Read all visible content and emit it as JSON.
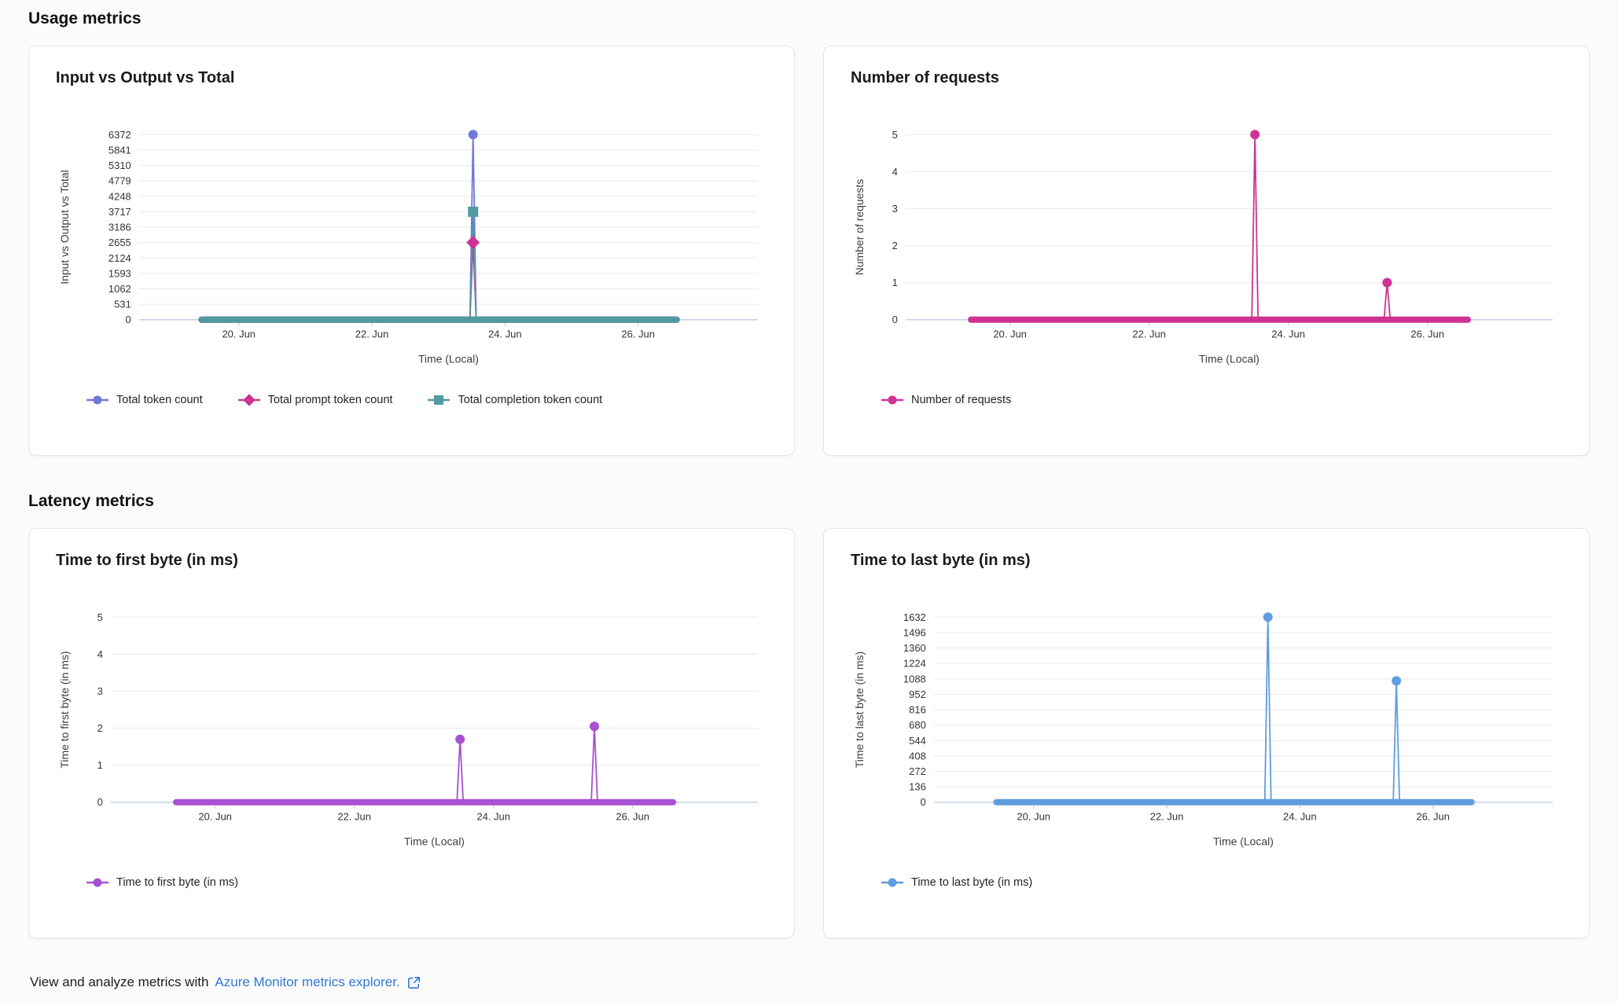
{
  "page": {
    "section_usage_heading": "Usage metrics",
    "section_latency_heading": "Latency metrics",
    "footer": {
      "prefix_text": "View and analyze metrics with",
      "link_text": "Azure Monitor metrics explorer.",
      "link_icon": "external-link-icon",
      "link_color": "#3179d8"
    }
  },
  "colors": {
    "total_token_count": "#7177db",
    "total_prompt_token_count": "#cf3292",
    "total_completion_token_count": "#4f9ba0",
    "number_of_requests": "#cf3292",
    "time_to_first_byte": "#a750d2",
    "time_to_last_byte": "#5f9dde",
    "axis_line": "#c9d4ea",
    "gridline": "#ededed",
    "axis_text": "#333333"
  },
  "chart_data": [
    {
      "id": "input-output-total",
      "type": "line",
      "title": "Input vs Output vs Total",
      "ylabel": "Input vs Output vs Total",
      "xlabel": "Time (Local)",
      "x_unit": "June date (day fraction)",
      "x_domain": [
        18.5,
        27.8
      ],
      "x_ticks": [
        {
          "t": 20,
          "label": "20. Jun"
        },
        {
          "t": 22,
          "label": "22. Jun"
        },
        {
          "t": 24,
          "label": "24. Jun"
        },
        {
          "t": 26,
          "label": "26. Jun"
        }
      ],
      "ylim": [
        0,
        6372
      ],
      "y_ticks": [
        0,
        531,
        1062,
        1593,
        2124,
        2655,
        3186,
        3717,
        4248,
        4779,
        5310,
        5841,
        6372
      ],
      "grid": true,
      "legend_position": "bottom-left",
      "data_extent": [
        19.44,
        26.58
      ],
      "series": [
        {
          "name": "Total token count",
          "color": "#7177db",
          "marker": "circle",
          "baseline_value": 0,
          "spikes": [
            {
              "t": 23.52,
              "v": 6372
            }
          ]
        },
        {
          "name": "Total prompt token count",
          "color": "#cf3292",
          "marker": "diamond",
          "baseline_value": 0,
          "spikes": [
            {
              "t": 23.52,
              "v": 2655
            }
          ]
        },
        {
          "name": "Total completion token count",
          "color": "#4f9ba0",
          "marker": "square",
          "baseline_value": 0,
          "spikes": [
            {
              "t": 23.52,
              "v": 3717
            }
          ]
        }
      ]
    },
    {
      "id": "number-of-requests",
      "type": "line",
      "title": "Number of requests",
      "ylabel": "Number of requests",
      "xlabel": "Time (Local)",
      "x_unit": "June date (day fraction)",
      "x_domain": [
        18.5,
        27.8
      ],
      "x_ticks": [
        {
          "t": 20,
          "label": "20. Jun"
        },
        {
          "t": 22,
          "label": "22. Jun"
        },
        {
          "t": 24,
          "label": "24. Jun"
        },
        {
          "t": 26,
          "label": "26. Jun"
        }
      ],
      "ylim": [
        0,
        5
      ],
      "y_ticks": [
        0,
        1,
        2,
        3,
        4,
        5
      ],
      "grid": true,
      "legend_position": "bottom-left",
      "data_extent": [
        19.44,
        26.58
      ],
      "series": [
        {
          "name": "Number of requests",
          "color": "#cf3292",
          "marker": "circle",
          "baseline_value": 0,
          "spikes": [
            {
              "t": 23.52,
              "v": 5
            },
            {
              "t": 25.42,
              "v": 1
            }
          ]
        }
      ]
    },
    {
      "id": "time-to-first-byte",
      "type": "line",
      "title": "Time to first byte (in ms)",
      "ylabel": "Time to first byte (in ms)",
      "xlabel": "Time (Local)",
      "x_unit": "June date (day fraction)",
      "x_domain": [
        18.5,
        27.8
      ],
      "x_ticks": [
        {
          "t": 20,
          "label": "20. Jun"
        },
        {
          "t": 22,
          "label": "22. Jun"
        },
        {
          "t": 24,
          "label": "24. Jun"
        },
        {
          "t": 26,
          "label": "26. Jun"
        }
      ],
      "ylim": [
        0,
        5
      ],
      "y_ticks": [
        0,
        1,
        2,
        3,
        4,
        5
      ],
      "grid": true,
      "legend_position": "bottom-left",
      "data_extent": [
        19.44,
        26.58
      ],
      "series": [
        {
          "name": "Time to first byte (in ms)",
          "color": "#a750d2",
          "marker": "circle",
          "baseline_value": 0,
          "spikes": [
            {
              "t": 23.52,
              "v": 1.7
            },
            {
              "t": 25.45,
              "v": 2.05
            }
          ]
        }
      ]
    },
    {
      "id": "time-to-last-byte",
      "type": "line",
      "title": "Time to last byte (in ms)",
      "ylabel": "Time to last byte (in ms)",
      "xlabel": "Time (Local)",
      "x_unit": "June date (day fraction)",
      "x_domain": [
        18.5,
        27.8
      ],
      "x_ticks": [
        {
          "t": 20,
          "label": "20. Jun"
        },
        {
          "t": 22,
          "label": "22. Jun"
        },
        {
          "t": 24,
          "label": "24. Jun"
        },
        {
          "t": 26,
          "label": "26. Jun"
        }
      ],
      "ylim": [
        0,
        1632
      ],
      "y_ticks": [
        0,
        136,
        272,
        408,
        544,
        680,
        816,
        952,
        1088,
        1224,
        1360,
        1496,
        1632
      ],
      "grid": true,
      "legend_position": "bottom-left",
      "data_extent": [
        19.44,
        26.58
      ],
      "series": [
        {
          "name": "Time to last byte (in ms)",
          "color": "#5f9dde",
          "marker": "circle",
          "baseline_value": 0,
          "spikes": [
            {
              "t": 23.52,
              "v": 1632
            },
            {
              "t": 25.45,
              "v": 1070
            }
          ]
        }
      ]
    }
  ]
}
